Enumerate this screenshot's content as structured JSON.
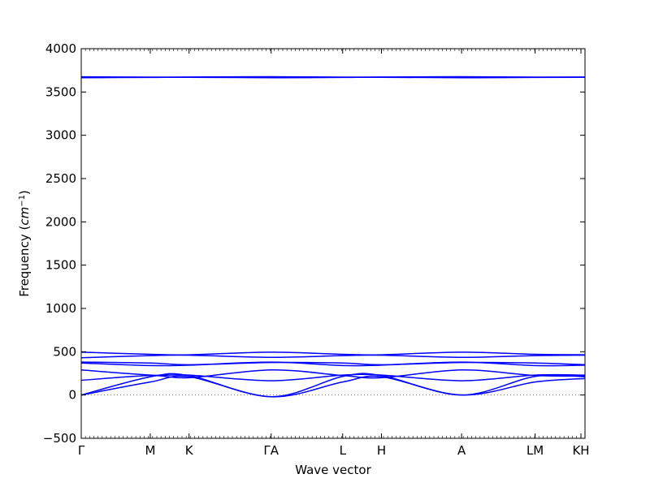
{
  "chart_data": {
    "type": "line",
    "title": "",
    "xlabel": "Wave vector",
    "ylabel": {
      "text": "Frequency (",
      "math_base": "cm",
      "math_sup": "−1",
      "suffix": ")"
    },
    "ylim": [
      -500,
      4000
    ],
    "yticks": [
      -500,
      0,
      500,
      1000,
      1500,
      2000,
      2500,
      3000,
      3500,
      4000
    ],
    "xlim": [
      0,
      1
    ],
    "xticks": [
      {
        "label": "Γ",
        "x": 0.0
      },
      {
        "label": "M",
        "x": 0.137
      },
      {
        "label": "K",
        "x": 0.214
      },
      {
        "label": "ΓA",
        "x": 0.377
      },
      {
        "label": "L",
        "x": 0.519
      },
      {
        "label": "H",
        "x": 0.596
      },
      {
        "label": "A",
        "x": 0.755
      },
      {
        "label": "LM",
        "x": 0.901
      },
      {
        "label": "KH",
        "x": 0.992
      }
    ],
    "grid": false,
    "legend": "none",
    "zero_line": {
      "y": 0,
      "style": "dotted",
      "color": "#808080"
    },
    "line_color": "#0000ff",
    "series": [
      {
        "points": [
          [
            0,
            0
          ],
          [
            0.137,
            150
          ],
          [
            0.214,
            210
          ],
          [
            0.377,
            -20
          ],
          [
            0.519,
            150
          ],
          [
            0.596,
            210
          ],
          [
            0.755,
            0
          ],
          [
            0.901,
            150
          ],
          [
            1.0,
            190
          ]
        ]
      },
      {
        "points": [
          [
            0,
            0
          ],
          [
            0.137,
            210
          ],
          [
            0.214,
            225
          ],
          [
            0.377,
            -20
          ],
          [
            0.519,
            215
          ],
          [
            0.596,
            225
          ],
          [
            0.755,
            0
          ],
          [
            0.901,
            215
          ],
          [
            1.0,
            210
          ]
        ]
      },
      {
        "points": [
          [
            0,
            170
          ],
          [
            0.137,
            225
          ],
          [
            0.214,
            200
          ],
          [
            0.377,
            290
          ],
          [
            0.519,
            225
          ],
          [
            0.596,
            200
          ],
          [
            0.755,
            290
          ],
          [
            0.901,
            225
          ],
          [
            1.0,
            220
          ]
        ]
      },
      {
        "points": [
          [
            0,
            290
          ],
          [
            0.137,
            230
          ],
          [
            0.214,
            230
          ],
          [
            0.377,
            165
          ],
          [
            0.519,
            230
          ],
          [
            0.596,
            230
          ],
          [
            0.755,
            165
          ],
          [
            0.901,
            230
          ],
          [
            1.0,
            230
          ]
        ]
      },
      {
        "points": [
          [
            0,
            370
          ],
          [
            0.137,
            340
          ],
          [
            0.214,
            345
          ],
          [
            0.377,
            380
          ],
          [
            0.519,
            340
          ],
          [
            0.596,
            345
          ],
          [
            0.755,
            380
          ],
          [
            0.901,
            340
          ],
          [
            1.0,
            345
          ]
        ]
      },
      {
        "points": [
          [
            0,
            380
          ],
          [
            0.137,
            370
          ],
          [
            0.214,
            350
          ],
          [
            0.377,
            375
          ],
          [
            0.519,
            370
          ],
          [
            0.596,
            350
          ],
          [
            0.755,
            375
          ],
          [
            0.901,
            370
          ],
          [
            1.0,
            350
          ]
        ]
      },
      {
        "points": [
          [
            0,
            430
          ],
          [
            0.137,
            455
          ],
          [
            0.214,
            460
          ],
          [
            0.377,
            435
          ],
          [
            0.519,
            455
          ],
          [
            0.596,
            460
          ],
          [
            0.755,
            435
          ],
          [
            0.901,
            455
          ],
          [
            1.0,
            460
          ]
        ]
      },
      {
        "points": [
          [
            0,
            495
          ],
          [
            0.137,
            470
          ],
          [
            0.214,
            465
          ],
          [
            0.377,
            495
          ],
          [
            0.519,
            470
          ],
          [
            0.596,
            465
          ],
          [
            0.755,
            495
          ],
          [
            0.901,
            470
          ],
          [
            1.0,
            465
          ]
        ]
      },
      {
        "points": [
          [
            0,
            3665
          ],
          [
            0.137,
            3668
          ],
          [
            0.214,
            3670
          ],
          [
            0.377,
            3665
          ],
          [
            0.519,
            3668
          ],
          [
            0.596,
            3670
          ],
          [
            0.755,
            3665
          ],
          [
            0.901,
            3668
          ],
          [
            1.0,
            3670
          ]
        ]
      },
      {
        "points": [
          [
            0,
            3675
          ],
          [
            0.137,
            3672
          ],
          [
            0.214,
            3673
          ],
          [
            0.377,
            3676
          ],
          [
            0.519,
            3672
          ],
          [
            0.596,
            3673
          ],
          [
            0.755,
            3676
          ],
          [
            0.901,
            3672
          ],
          [
            1.0,
            3673
          ]
        ]
      }
    ]
  }
}
